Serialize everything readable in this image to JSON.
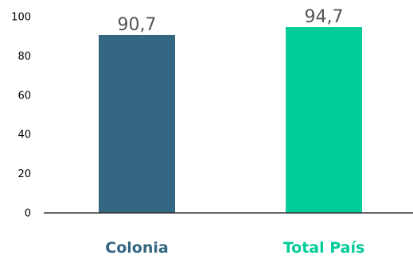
{
  "chart_data": {
    "type": "bar",
    "categories": [
      "Colonia",
      "Total País"
    ],
    "values": [
      90.7,
      94.7
    ],
    "value_labels": [
      "90,7",
      "94,7"
    ],
    "colors": [
      "#336680",
      "#00CC99"
    ],
    "category_label_colors": [
      "#336680",
      "#00CC99"
    ],
    "ylim": [
      0,
      100
    ],
    "yticks": [
      0,
      20,
      40,
      60,
      80,
      100
    ],
    "ytick_labels": [
      "0",
      "20",
      "40",
      "60",
      "80",
      "100"
    ],
    "grid": false,
    "legend": "none",
    "title": "",
    "xlabel": "",
    "ylabel": ""
  }
}
